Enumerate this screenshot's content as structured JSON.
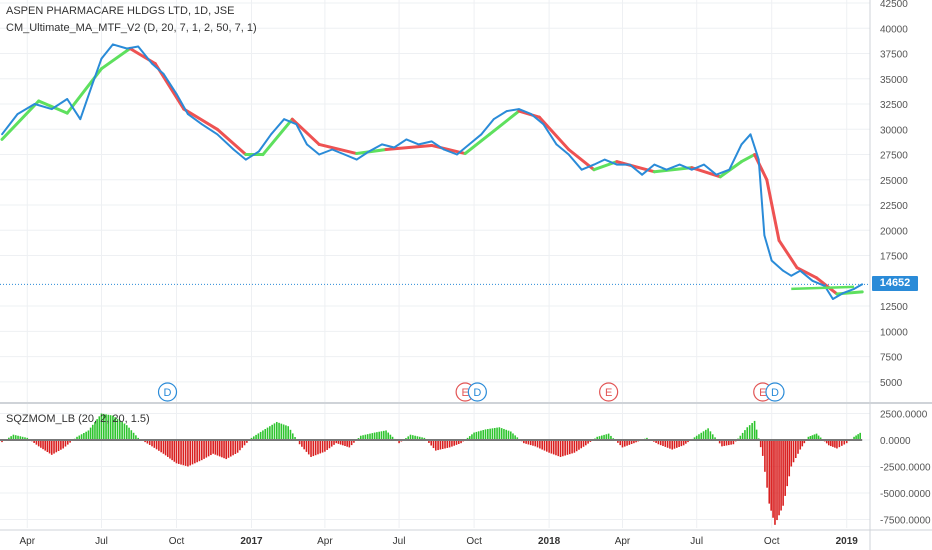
{
  "header": {
    "symbol_line": "ASPEN PHARMACARE HLDGS LTD, 1D, JSE",
    "indicator_line": "CM_Ultimate_MA_MTF_V2 (D, 20, 7, 1, 2, 50, 7, 1)",
    "oscillator_line": "SQZMOM_LB (20, 2, 20, 1.5)"
  },
  "last_price": "14652",
  "colors": {
    "price_line": "#2a8bd8",
    "ma_up": "#5ee05e",
    "ma_down": "#ee5252",
    "mom_pos": "#2ec42e",
    "mom_neg": "#d91f1f",
    "grid": "#eef0f3",
    "event_dividend": "#2a8bd8",
    "event_earnings": "#e25555"
  },
  "chart_data": [
    {
      "type": "line",
      "y_axis_ticks": [
        "42500",
        "40000",
        "37500",
        "35000",
        "32500",
        "30000",
        "27500",
        "25000",
        "22500",
        "20000",
        "17500",
        "12500",
        "10000",
        "7500",
        "5000"
      ],
      "ylim": [
        3200,
        42800
      ],
      "x_axis_ticks": [
        "Apr",
        "Jul",
        "Oct",
        "2017",
        "Apr",
        "Jul",
        "Oct",
        "2018",
        "Apr",
        "Jul",
        "Oct",
        "2019"
      ],
      "x_tick_dates": [
        "2016-04",
        "2016-07",
        "2016-10",
        "2017-01",
        "2017-04",
        "2017-07",
        "2017-10",
        "2018-01",
        "2018-04",
        "2018-07",
        "2018-10",
        "2019-01"
      ],
      "x_range": [
        "2016-03",
        "2019-02"
      ],
      "series": [
        {
          "kind": "price",
          "points": [
            [
              "2016-03-01",
              29500
            ],
            [
              "2016-03-20",
              31500
            ],
            [
              "2016-04-10",
              32500
            ],
            [
              "2016-05-01",
              32000
            ],
            [
              "2016-05-20",
              33000
            ],
            [
              "2016-06-05",
              31000
            ],
            [
              "2016-06-20",
              34500
            ],
            [
              "2016-07-01",
              37000
            ],
            [
              "2016-07-15",
              38400
            ],
            [
              "2016-08-01",
              38000
            ],
            [
              "2016-08-15",
              38200
            ],
            [
              "2016-09-01",
              36500
            ],
            [
              "2016-09-15",
              35500
            ],
            [
              "2016-10-01",
              33500
            ],
            [
              "2016-10-15",
              31500
            ],
            [
              "2016-11-01",
              30500
            ],
            [
              "2016-11-20",
              29500
            ],
            [
              "2016-12-10",
              28000
            ],
            [
              "2016-12-25",
              27000
            ],
            [
              "2017-01-10",
              27800
            ],
            [
              "2017-01-25",
              29500
            ],
            [
              "2017-02-10",
              31000
            ],
            [
              "2017-02-25",
              30500
            ],
            [
              "2017-03-10",
              28500
            ],
            [
              "2017-03-25",
              27500
            ],
            [
              "2017-04-10",
              28000
            ],
            [
              "2017-04-25",
              27500
            ],
            [
              "2017-05-10",
              27000
            ],
            [
              "2017-05-25",
              27800
            ],
            [
              "2017-06-10",
              28500
            ],
            [
              "2017-06-25",
              28200
            ],
            [
              "2017-07-10",
              29000
            ],
            [
              "2017-07-25",
              28500
            ],
            [
              "2017-08-10",
              28800
            ],
            [
              "2017-08-25",
              28000
            ],
            [
              "2017-09-10",
              27500
            ],
            [
              "2017-09-25",
              28500
            ],
            [
              "2017-10-10",
              29500
            ],
            [
              "2017-10-25",
              31000
            ],
            [
              "2017-11-10",
              31800
            ],
            [
              "2017-11-25",
              32000
            ],
            [
              "2017-12-10",
              31500
            ],
            [
              "2017-12-25",
              30500
            ],
            [
              "2018-01-10",
              28500
            ],
            [
              "2018-01-25",
              27500
            ],
            [
              "2018-02-10",
              26000
            ],
            [
              "2018-02-25",
              26500
            ],
            [
              "2018-03-10",
              27000
            ],
            [
              "2018-03-25",
              26500
            ],
            [
              "2018-04-10",
              26500
            ],
            [
              "2018-04-25",
              25500
            ],
            [
              "2018-05-10",
              26500
            ],
            [
              "2018-05-25",
              26000
            ],
            [
              "2018-06-10",
              26500
            ],
            [
              "2018-06-25",
              26000
            ],
            [
              "2018-07-10",
              26500
            ],
            [
              "2018-07-25",
              25500
            ],
            [
              "2018-08-10",
              26000
            ],
            [
              "2018-08-25",
              28500
            ],
            [
              "2018-09-05",
              29500
            ],
            [
              "2018-09-15",
              27000
            ],
            [
              "2018-09-22",
              19500
            ],
            [
              "2018-10-01",
              17000
            ],
            [
              "2018-10-15",
              16000
            ],
            [
              "2018-10-25",
              15500
            ],
            [
              "2018-11-05",
              16000
            ],
            [
              "2018-11-20",
              15000
            ],
            [
              "2018-12-05",
              14500
            ],
            [
              "2018-12-15",
              13200
            ],
            [
              "2018-12-28",
              13800
            ],
            [
              "2019-01-10",
              14200
            ],
            [
              "2019-01-20",
              14652
            ]
          ]
        },
        {
          "kind": "moving_average",
          "points": [
            [
              "2016-03-01",
              29000,
              "up"
            ],
            [
              "2016-04-15",
              32800,
              "up"
            ],
            [
              "2016-05-20",
              31600,
              "up"
            ],
            [
              "2016-07-01",
              36000,
              "up"
            ],
            [
              "2016-08-05",
              38000,
              "up"
            ],
            [
              "2016-09-05",
              36500,
              "down"
            ],
            [
              "2016-10-10",
              32000,
              "down"
            ],
            [
              "2016-11-20",
              30000,
              "down"
            ],
            [
              "2016-12-25",
              27500,
              "down"
            ],
            [
              "2017-01-15",
              27500,
              "up"
            ],
            [
              "2017-02-20",
              31000,
              "up"
            ],
            [
              "2017-03-25",
              28500,
              "down"
            ],
            [
              "2017-05-10",
              27600,
              "down"
            ],
            [
              "2017-06-15",
              28000,
              "up"
            ],
            [
              "2017-08-10",
              28400,
              "down"
            ],
            [
              "2017-09-20",
              27600,
              "down"
            ],
            [
              "2017-10-20",
              29500,
              "up"
            ],
            [
              "2017-11-25",
              31800,
              "up"
            ],
            [
              "2017-12-20",
              31200,
              "down"
            ],
            [
              "2018-01-25",
              28000,
              "down"
            ],
            [
              "2018-02-25",
              26000,
              "down"
            ],
            [
              "2018-03-25",
              26800,
              "up"
            ],
            [
              "2018-05-10",
              25800,
              "down"
            ],
            [
              "2018-06-25",
              26200,
              "up"
            ],
            [
              "2018-07-30",
              25300,
              "down"
            ],
            [
              "2018-08-25",
              26800,
              "up"
            ],
            [
              "2018-09-10",
              27500,
              "up"
            ],
            [
              "2018-09-25",
              25000,
              "down"
            ],
            [
              "2018-10-10",
              19000,
              "down"
            ],
            [
              "2018-11-01",
              16300,
              "down"
            ],
            [
              "2018-11-25",
              15300,
              "down"
            ],
            [
              "2018-12-20",
              13700,
              "down"
            ],
            [
              "2019-01-20",
              13900,
              "up"
            ]
          ]
        },
        {
          "kind": "support_level",
          "points": [
            [
              "2018-10-25",
              14200
            ],
            [
              "2019-01-10",
              14400
            ]
          ]
        }
      ],
      "events": [
        {
          "label": "D",
          "date": "2016-09-20",
          "kind": "dividend"
        },
        {
          "label": "E",
          "date": "2017-09-20",
          "kind": "earnings"
        },
        {
          "label": "D",
          "date": "2017-10-05",
          "kind": "dividend"
        },
        {
          "label": "E",
          "date": "2018-03-15",
          "kind": "earnings"
        },
        {
          "label": "E",
          "date": "2018-09-20",
          "kind": "earnings"
        },
        {
          "label": "D",
          "date": "2018-10-05",
          "kind": "dividend"
        }
      ]
    },
    {
      "type": "bar",
      "y_axis_ticks": [
        "2500.0000",
        "0.0000",
        "-2500.0000",
        "-5000.0000",
        "-7500.0000"
      ],
      "ylim": [
        -8300,
        3300
      ],
      "points": [
        [
          "2016-03-01",
          -200
        ],
        [
          "2016-03-15",
          500
        ],
        [
          "2016-04-01",
          200
        ],
        [
          "2016-04-15",
          -600
        ],
        [
          "2016-05-01",
          -1400
        ],
        [
          "2016-05-15",
          -800
        ],
        [
          "2016-06-01",
          300
        ],
        [
          "2016-06-15",
          900
        ],
        [
          "2016-07-01",
          2500
        ],
        [
          "2016-07-15",
          2300
        ],
        [
          "2016-08-01",
          1400
        ],
        [
          "2016-08-15",
          200
        ],
        [
          "2016-09-01",
          -600
        ],
        [
          "2016-09-15",
          -1300
        ],
        [
          "2016-10-01",
          -2200
        ],
        [
          "2016-10-15",
          -2500
        ],
        [
          "2016-11-01",
          -1900
        ],
        [
          "2016-11-15",
          -1300
        ],
        [
          "2016-12-01",
          -1800
        ],
        [
          "2016-12-15",
          -1200
        ],
        [
          "2017-01-01",
          200
        ],
        [
          "2017-01-15",
          900
        ],
        [
          "2017-02-01",
          1700
        ],
        [
          "2017-02-15",
          1300
        ],
        [
          "2017-03-01",
          -400
        ],
        [
          "2017-03-15",
          -1600
        ],
        [
          "2017-04-01",
          -1100
        ],
        [
          "2017-04-15",
          -300
        ],
        [
          "2017-05-01",
          -700
        ],
        [
          "2017-05-15",
          400
        ],
        [
          "2017-06-01",
          700
        ],
        [
          "2017-06-15",
          900
        ],
        [
          "2017-07-01",
          -300
        ],
        [
          "2017-07-15",
          500
        ],
        [
          "2017-08-01",
          200
        ],
        [
          "2017-08-15",
          -1000
        ],
        [
          "2017-09-01",
          -700
        ],
        [
          "2017-09-15",
          -300
        ],
        [
          "2017-10-01",
          700
        ],
        [
          "2017-10-15",
          1000
        ],
        [
          "2017-11-01",
          1200
        ],
        [
          "2017-11-15",
          800
        ],
        [
          "2017-12-01",
          -300
        ],
        [
          "2017-12-15",
          -600
        ],
        [
          "2018-01-01",
          -1200
        ],
        [
          "2018-01-15",
          -1600
        ],
        [
          "2018-02-01",
          -1200
        ],
        [
          "2018-02-15",
          -500
        ],
        [
          "2018-03-01",
          300
        ],
        [
          "2018-03-15",
          600
        ],
        [
          "2018-04-01",
          -700
        ],
        [
          "2018-04-15",
          -300
        ],
        [
          "2018-05-01",
          200
        ],
        [
          "2018-05-15",
          -400
        ],
        [
          "2018-06-01",
          -900
        ],
        [
          "2018-06-15",
          -500
        ],
        [
          "2018-07-01",
          400
        ],
        [
          "2018-07-15",
          1100
        ],
        [
          "2018-08-01",
          -600
        ],
        [
          "2018-08-15",
          -400
        ],
        [
          "2018-09-01",
          1200
        ],
        [
          "2018-09-10",
          1800
        ],
        [
          "2018-09-20",
          -1500
        ],
        [
          "2018-09-28",
          -6000
        ],
        [
          "2018-10-05",
          -8000
        ],
        [
          "2018-10-15",
          -6200
        ],
        [
          "2018-10-25",
          -2500
        ],
        [
          "2018-11-05",
          -900
        ],
        [
          "2018-11-15",
          300
        ],
        [
          "2018-11-25",
          600
        ],
        [
          "2018-12-10",
          -500
        ],
        [
          "2018-12-20",
          -800
        ],
        [
          "2019-01-01",
          -300
        ],
        [
          "2019-01-10",
          300
        ],
        [
          "2019-01-20",
          800
        ]
      ]
    }
  ]
}
